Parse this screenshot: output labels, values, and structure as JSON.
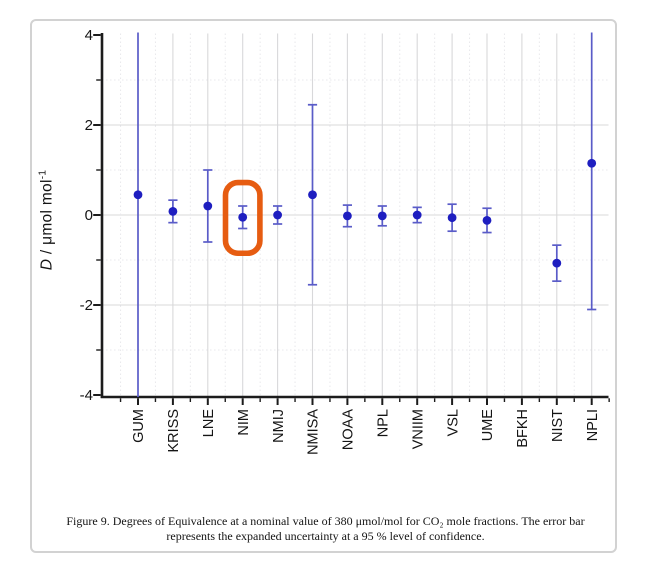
{
  "figure": {
    "caption_line1": "Figure 9.  Degrees of Equivalence at a nominal value of 380 μmol/mol for CO₂ mole fractions. The error bar",
    "caption_line2": "represents the expanded uncertainty at a 95 % level of confidence."
  },
  "y_axis": {
    "label_d": "D",
    "label_rest": " / μmol mol",
    "label_sup": "-1"
  },
  "chart_data": {
    "type": "scatter",
    "title": "",
    "xlabel": "",
    "ylabel": "D / μmol mol⁻¹",
    "ylim": [
      -4,
      4
    ],
    "y_major_ticks": [
      -4,
      -2,
      0,
      2,
      4
    ],
    "y_minor_ticks": [
      -3,
      -1,
      1,
      3
    ],
    "grid": true,
    "legend": "none",
    "categories": [
      "GUM",
      "KRISS",
      "LNE",
      "NIM",
      "NMIJ",
      "NMISA",
      "NOAA",
      "NPL",
      "VNIIM",
      "VSL",
      "UME",
      "BFKH",
      "NIST",
      "NPLI"
    ],
    "series": [
      {
        "name": "Degree of Equivalence D",
        "values": [
          0.45,
          0.08,
          0.2,
          -0.05,
          0.0,
          0.45,
          -0.02,
          -0.02,
          0.0,
          -0.06,
          -0.12,
          null,
          -1.07,
          1.15
        ],
        "u95": [
          5.0,
          0.25,
          0.8,
          0.25,
          0.2,
          2.0,
          0.24,
          0.22,
          0.17,
          0.3,
          0.27,
          null,
          0.4,
          3.25
        ]
      }
    ],
    "clipped_error_bars": [
      "GUM",
      "NPLI"
    ],
    "highlight": {
      "category": "NIM",
      "color": "#e65c11"
    },
    "colors": {
      "point": "#1e1ec0",
      "error_bar": "#5a5cc8",
      "axis": "#1c1c1c",
      "tick_label": "#151515",
      "grid_major": "#d8d8da",
      "grid_minor": "#e8e8ec",
      "frame_border": "#d2d2d2"
    }
  }
}
